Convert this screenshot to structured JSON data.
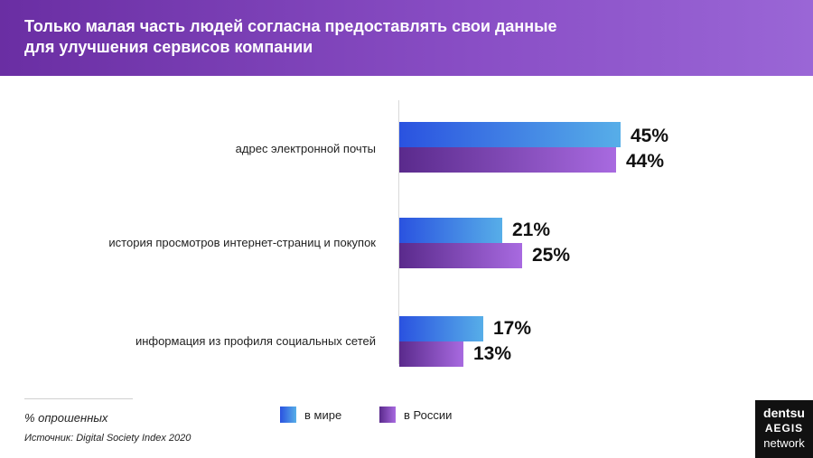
{
  "header": {
    "title_line1": "Только малая часть людей согласна предоставлять свои данные",
    "title_line2": "для улучшения сервисов компании"
  },
  "chart_data": {
    "type": "bar",
    "orientation": "horizontal",
    "title": "Только малая часть людей согласна предоставлять свои данные для улучшения сервисов компании",
    "categories": [
      "адрес электронной почты",
      "история просмотров интернет-страниц и покупок",
      "информация из профиля социальных сетей"
    ],
    "series": [
      {
        "name": "в мире",
        "values": [
          45,
          21,
          17
        ],
        "labels": [
          "45%",
          "21%",
          "17%"
        ]
      },
      {
        "name": "в России",
        "values": [
          44,
          25,
          13
        ],
        "labels": [
          "44%",
          "25%",
          "13%"
        ]
      }
    ],
    "unit": "%",
    "xlim": [
      0,
      100
    ]
  },
  "legend": {
    "world_label": "в мире",
    "russia_label": "в России"
  },
  "footer": {
    "note": "% опрошенных",
    "source": "Источник: Digital Society Index 2020"
  },
  "logo": {
    "line1": "dentsu",
    "line2": "AEGIS",
    "line3": "network"
  },
  "colors": {
    "header_start": "#6a2ea3",
    "header_end": "#9a66d6",
    "world_start": "#2a52e0",
    "world_end": "#57aee8",
    "russia_start": "#5a2a8c",
    "russia_end": "#a86ae0"
  }
}
